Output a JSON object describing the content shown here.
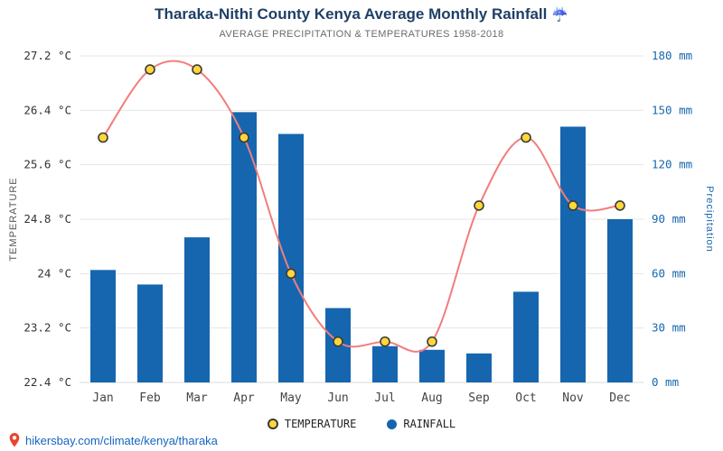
{
  "header": {
    "title": "Tharaka-Nithi County Kenya Average Monthly Rainfall",
    "title_icon": "☔",
    "subtitle": "AVERAGE PRECIPITATION & TEMPERATURES 1958-2018"
  },
  "chart_data": {
    "type": "bar+line",
    "categories": [
      "Jan",
      "Feb",
      "Mar",
      "Apr",
      "May",
      "Jun",
      "Jul",
      "Aug",
      "Sep",
      "Oct",
      "Nov",
      "Dec"
    ],
    "series": [
      {
        "name": "RAINFALL",
        "type": "bar",
        "axis": "right",
        "unit": "mm",
        "values": [
          62,
          54,
          80,
          149,
          137,
          41,
          20,
          18,
          16,
          50,
          141,
          90
        ]
      },
      {
        "name": "TEMPERATURE",
        "type": "line",
        "axis": "left",
        "unit": "°C",
        "values": [
          26.0,
          27.0,
          27.0,
          26.0,
          24.0,
          23.0,
          23.0,
          23.0,
          25.0,
          26.0,
          25.0,
          25.0
        ]
      }
    ],
    "left_axis": {
      "label": "TEMPERATURE",
      "min": 22.4,
      "max": 27.2,
      "step": 0.8,
      "ticks": [
        "22.4 °C",
        "23.2 °C",
        "24 °C",
        "24.8 °C",
        "25.6 °C",
        "26.4 °C",
        "27.2 °C"
      ]
    },
    "right_axis": {
      "label": "Precipitation",
      "min": 0,
      "max": 180,
      "step": 30,
      "ticks": [
        "0 mm",
        "30 mm",
        "60 mm",
        "90 mm",
        "120 mm",
        "150 mm",
        "180 mm"
      ]
    },
    "grid": true,
    "legend_position": "bottom",
    "colors": {
      "bar": "#1666af",
      "line": "#f27d7d",
      "marker_fill": "#ffd738",
      "marker_stroke": "#3a3a3a",
      "grid": "#e4e4e4",
      "axis_line": "#d9d9d9",
      "left_tick_text": "#333333",
      "right_tick_text": "#1767ae",
      "month_text": "#444444",
      "title_text": "#1e3f66"
    }
  },
  "legend": [
    {
      "label": "TEMPERATURE",
      "marker": "ring"
    },
    {
      "label": "RAINFALL",
      "marker": "dot"
    }
  ],
  "footer": {
    "link": "hikersbay.com/climate/kenya/tharaka"
  }
}
